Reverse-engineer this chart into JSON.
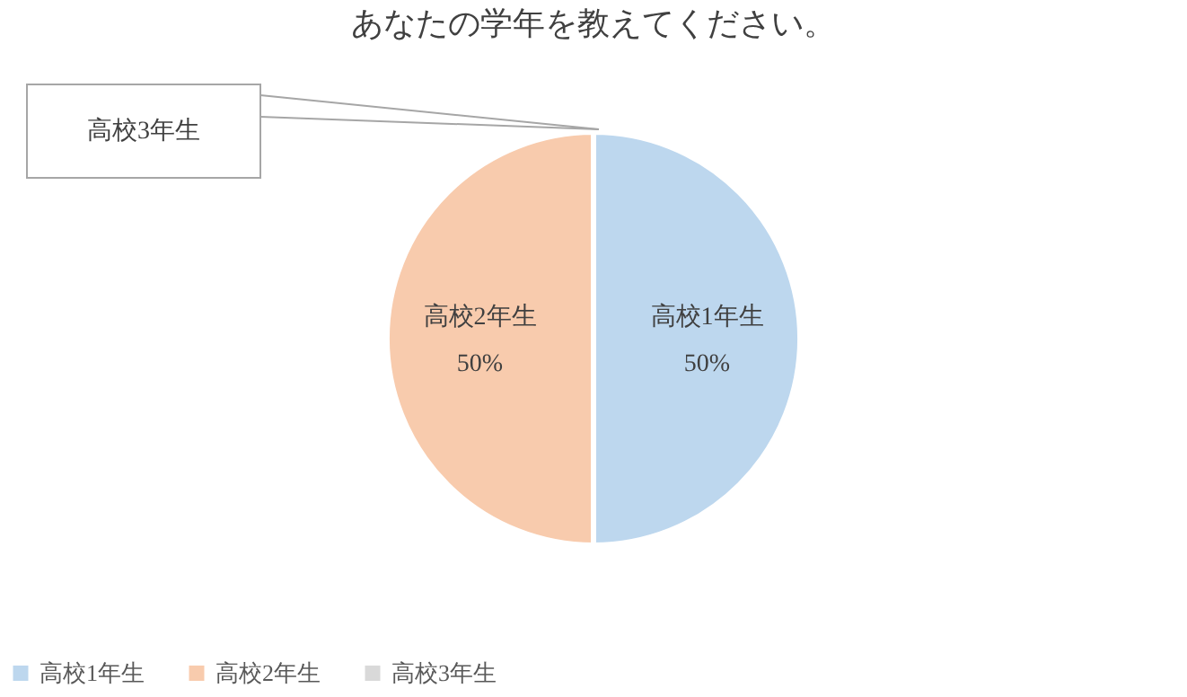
{
  "chart_data": {
    "type": "pie",
    "title": "あなたの学年を教えてください。",
    "categories": [
      "高校1年生",
      "高校2年生",
      "高校3年生"
    ],
    "values": [
      50,
      50,
      0
    ],
    "value_labels": [
      "50%",
      "50%",
      null
    ],
    "colors": [
      "#bdd7ee",
      "#f8cbad",
      "#d9d9d9"
    ],
    "legend": "bottom"
  }
}
